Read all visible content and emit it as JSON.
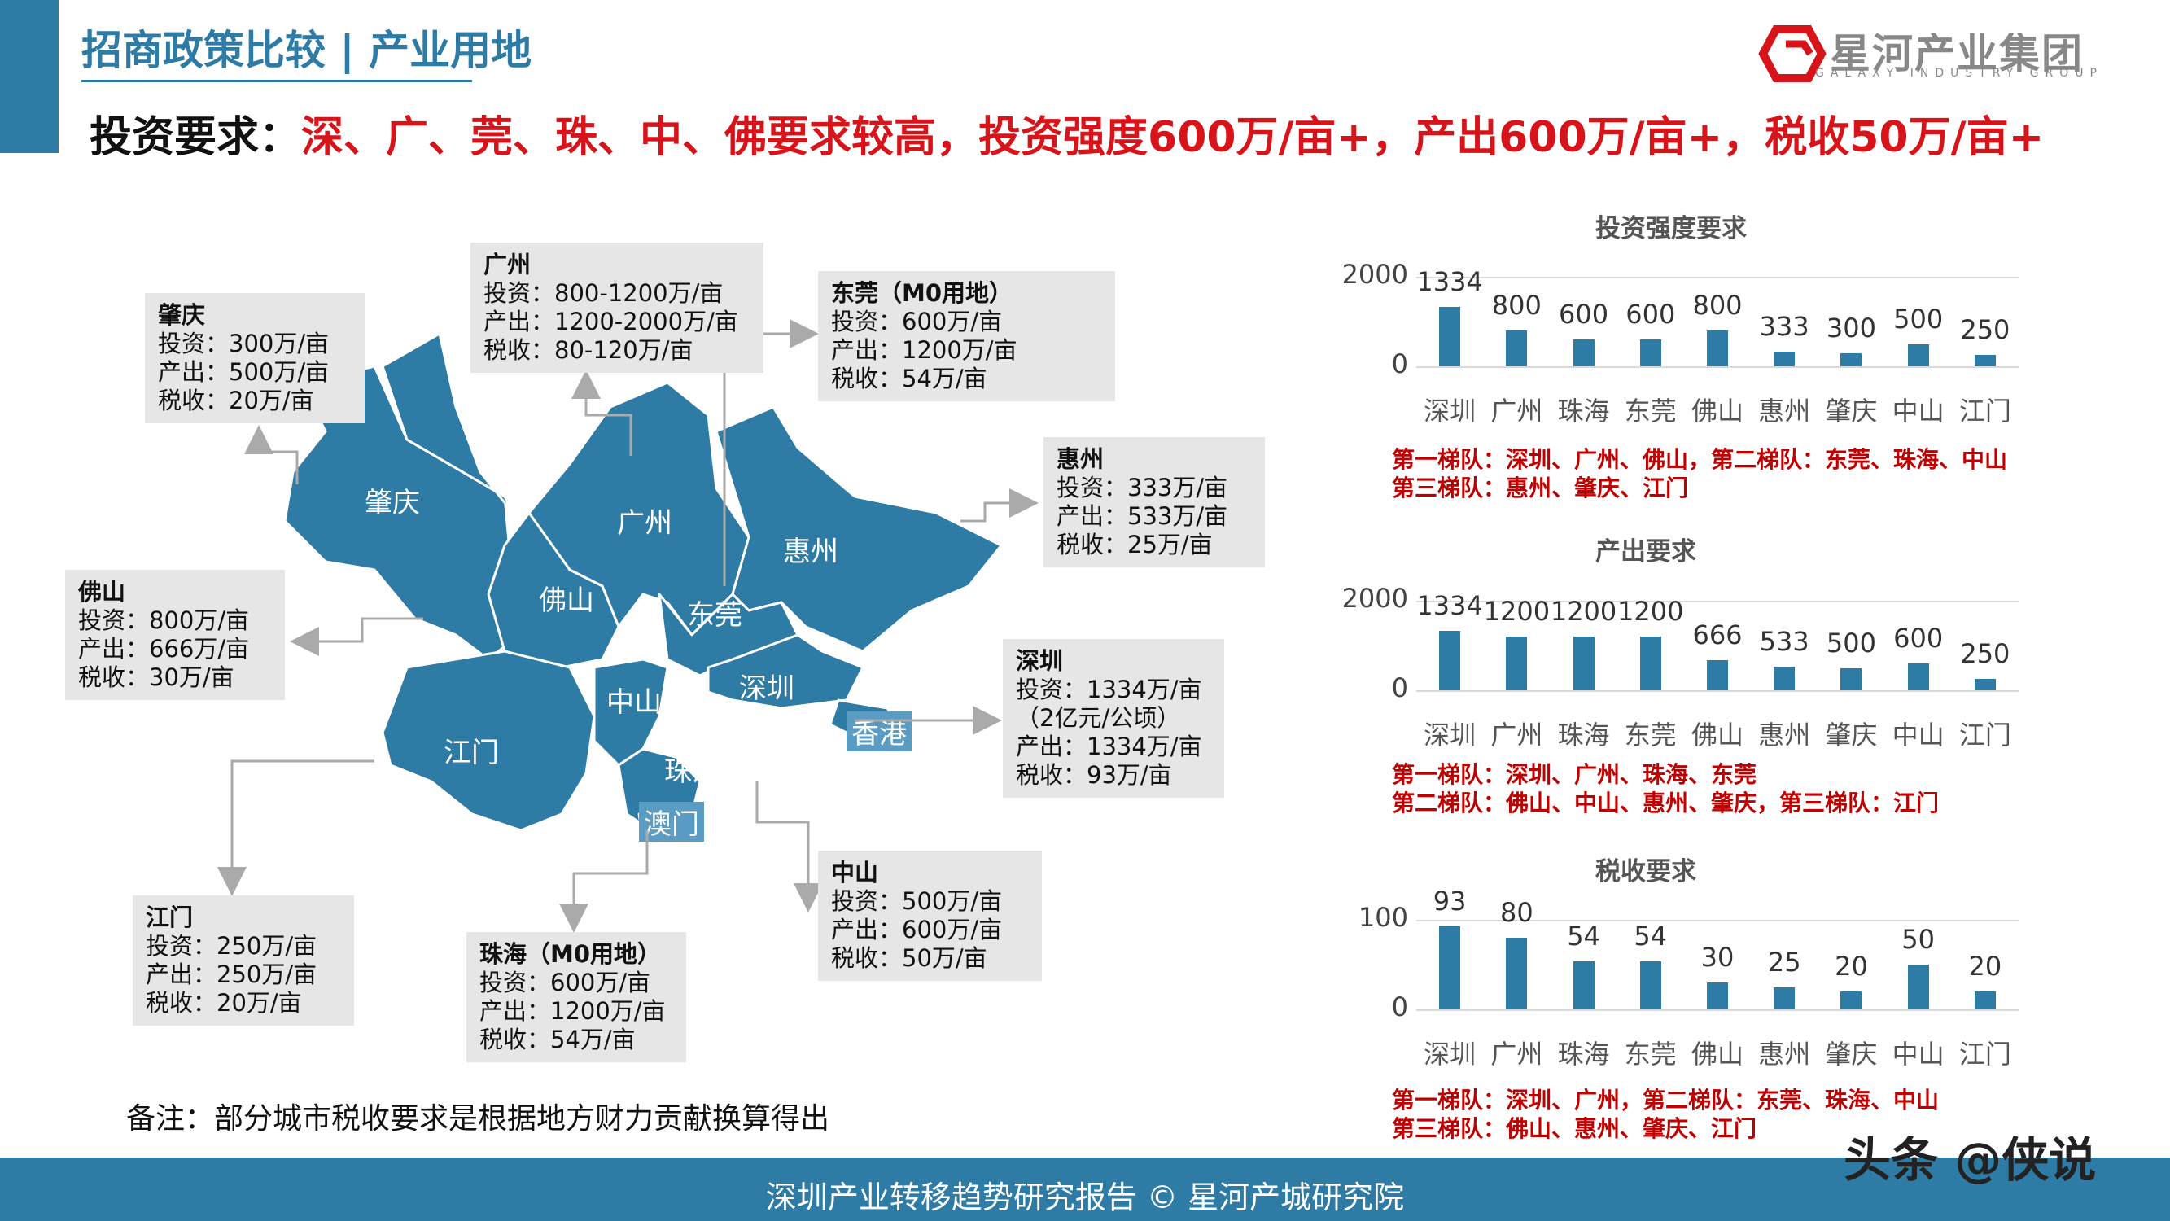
{
  "header": {
    "section_title": "招商政策比较 | 产业用地",
    "headline_lead": "投资要求：",
    "headline_highlight": "深、广、莞、珠、中、佛要求较高，投资强度600万/亩+，产出600万/亩+，税收50万/亩+",
    "logo_name": "星河产业集团",
    "logo_sub": "GALAXY INDUSTRY GROUP"
  },
  "map": {
    "region_labels": [
      "肇庆",
      "广州",
      "佛山",
      "惠州",
      "东莞",
      "中山",
      "深圳",
      "江门",
      "珠海",
      "香港",
      "澳门"
    ],
    "info_boxes": {
      "zhaoqing": {
        "city": "肇庆",
        "lines": [
          "投资：300万/亩",
          "产出：500万/亩",
          "税收：20万/亩"
        ]
      },
      "guangzhou": {
        "city": "广州",
        "lines": [
          "投资：800-1200万/亩",
          "产出：1200-2000万/亩",
          "税收：80-120万/亩"
        ]
      },
      "dongguan": {
        "city": "东莞（M0用地）",
        "lines": [
          "投资：600万/亩",
          "产出：1200万/亩",
          "税收：54万/亩"
        ]
      },
      "huizhou": {
        "city": "惠州",
        "lines": [
          "投资：333万/亩",
          "产出：533万/亩",
          "税收：25万/亩"
        ]
      },
      "foshan": {
        "city": "佛山",
        "lines": [
          "投资：800万/亩",
          "产出：666万/亩",
          "税收：30万/亩"
        ]
      },
      "shenzhen": {
        "city": "深圳",
        "lines": [
          "投资：1334万/亩",
          "（2亿元/公顷）",
          "产出：1334万/亩",
          "税收：93万/亩"
        ]
      },
      "jiangmen": {
        "city": "江门",
        "lines": [
          "投资：250万/亩",
          "产出：250万/亩",
          "税收：20万/亩"
        ]
      },
      "zhuhai": {
        "city": "珠海（M0用地）",
        "lines": [
          "投资：600万/亩",
          "产出：1200万/亩",
          "税收：54万/亩"
        ]
      },
      "zhongshan": {
        "city": "中山",
        "lines": [
          "投资：500万/亩",
          "产出：600万/亩",
          "税收：50万/亩"
        ]
      }
    },
    "map_color": "#2e7ba6"
  },
  "note": "备注：部分城市税收要求是根据地方财力贡献换算得出",
  "chart_data": [
    {
      "type": "bar",
      "title": "投资强度要求",
      "categories": [
        "深圳",
        "广州",
        "珠海",
        "东莞",
        "佛山",
        "惠州",
        "肇庆",
        "中山",
        "江门"
      ],
      "values": [
        1334,
        800,
        600,
        600,
        800,
        333,
        300,
        500,
        250
      ],
      "ylim": [
        0,
        2000
      ],
      "yticks": [
        0,
        2000
      ],
      "grid": true,
      "color": "#2e7ba6",
      "tiers": [
        "第一梯队：深圳、广州、佛山，第二梯队：东莞、珠海、中山",
        "第三梯队：惠州、肇庆、江门"
      ]
    },
    {
      "type": "bar",
      "title": "产出要求",
      "categories": [
        "深圳",
        "广州",
        "珠海",
        "东莞",
        "佛山",
        "惠州",
        "肇庆",
        "中山",
        "江门"
      ],
      "values": [
        1334,
        1200,
        1200,
        1200,
        666,
        533,
        500,
        600,
        250
      ],
      "ylim": [
        0,
        2000
      ],
      "yticks": [
        0,
        2000
      ],
      "grid": true,
      "color": "#2e7ba6",
      "tiers": [
        "第一梯队：深圳、广州、珠海、东莞",
        "第二梯队：佛山、中山、惠州、肇庆，第三梯队：江门"
      ]
    },
    {
      "type": "bar",
      "title": "税收要求",
      "categories": [
        "深圳",
        "广州",
        "珠海",
        "东莞",
        "佛山",
        "惠州",
        "肇庆",
        "中山",
        "江门"
      ],
      "values": [
        93,
        80,
        54,
        54,
        30,
        25,
        20,
        50,
        20
      ],
      "ylim": [
        0,
        100
      ],
      "yticks": [
        0,
        100
      ],
      "grid": true,
      "color": "#2e7ba6",
      "tiers": [
        "第一梯队：深圳、广州，第二梯队：东莞、珠海、中山",
        "第三梯队：佛山、惠州、肇庆、江门"
      ]
    }
  ],
  "footer": {
    "text": "深圳产业转移趋势研究报告 © 星河产城研究院",
    "watermark": "头条 @侠说"
  }
}
